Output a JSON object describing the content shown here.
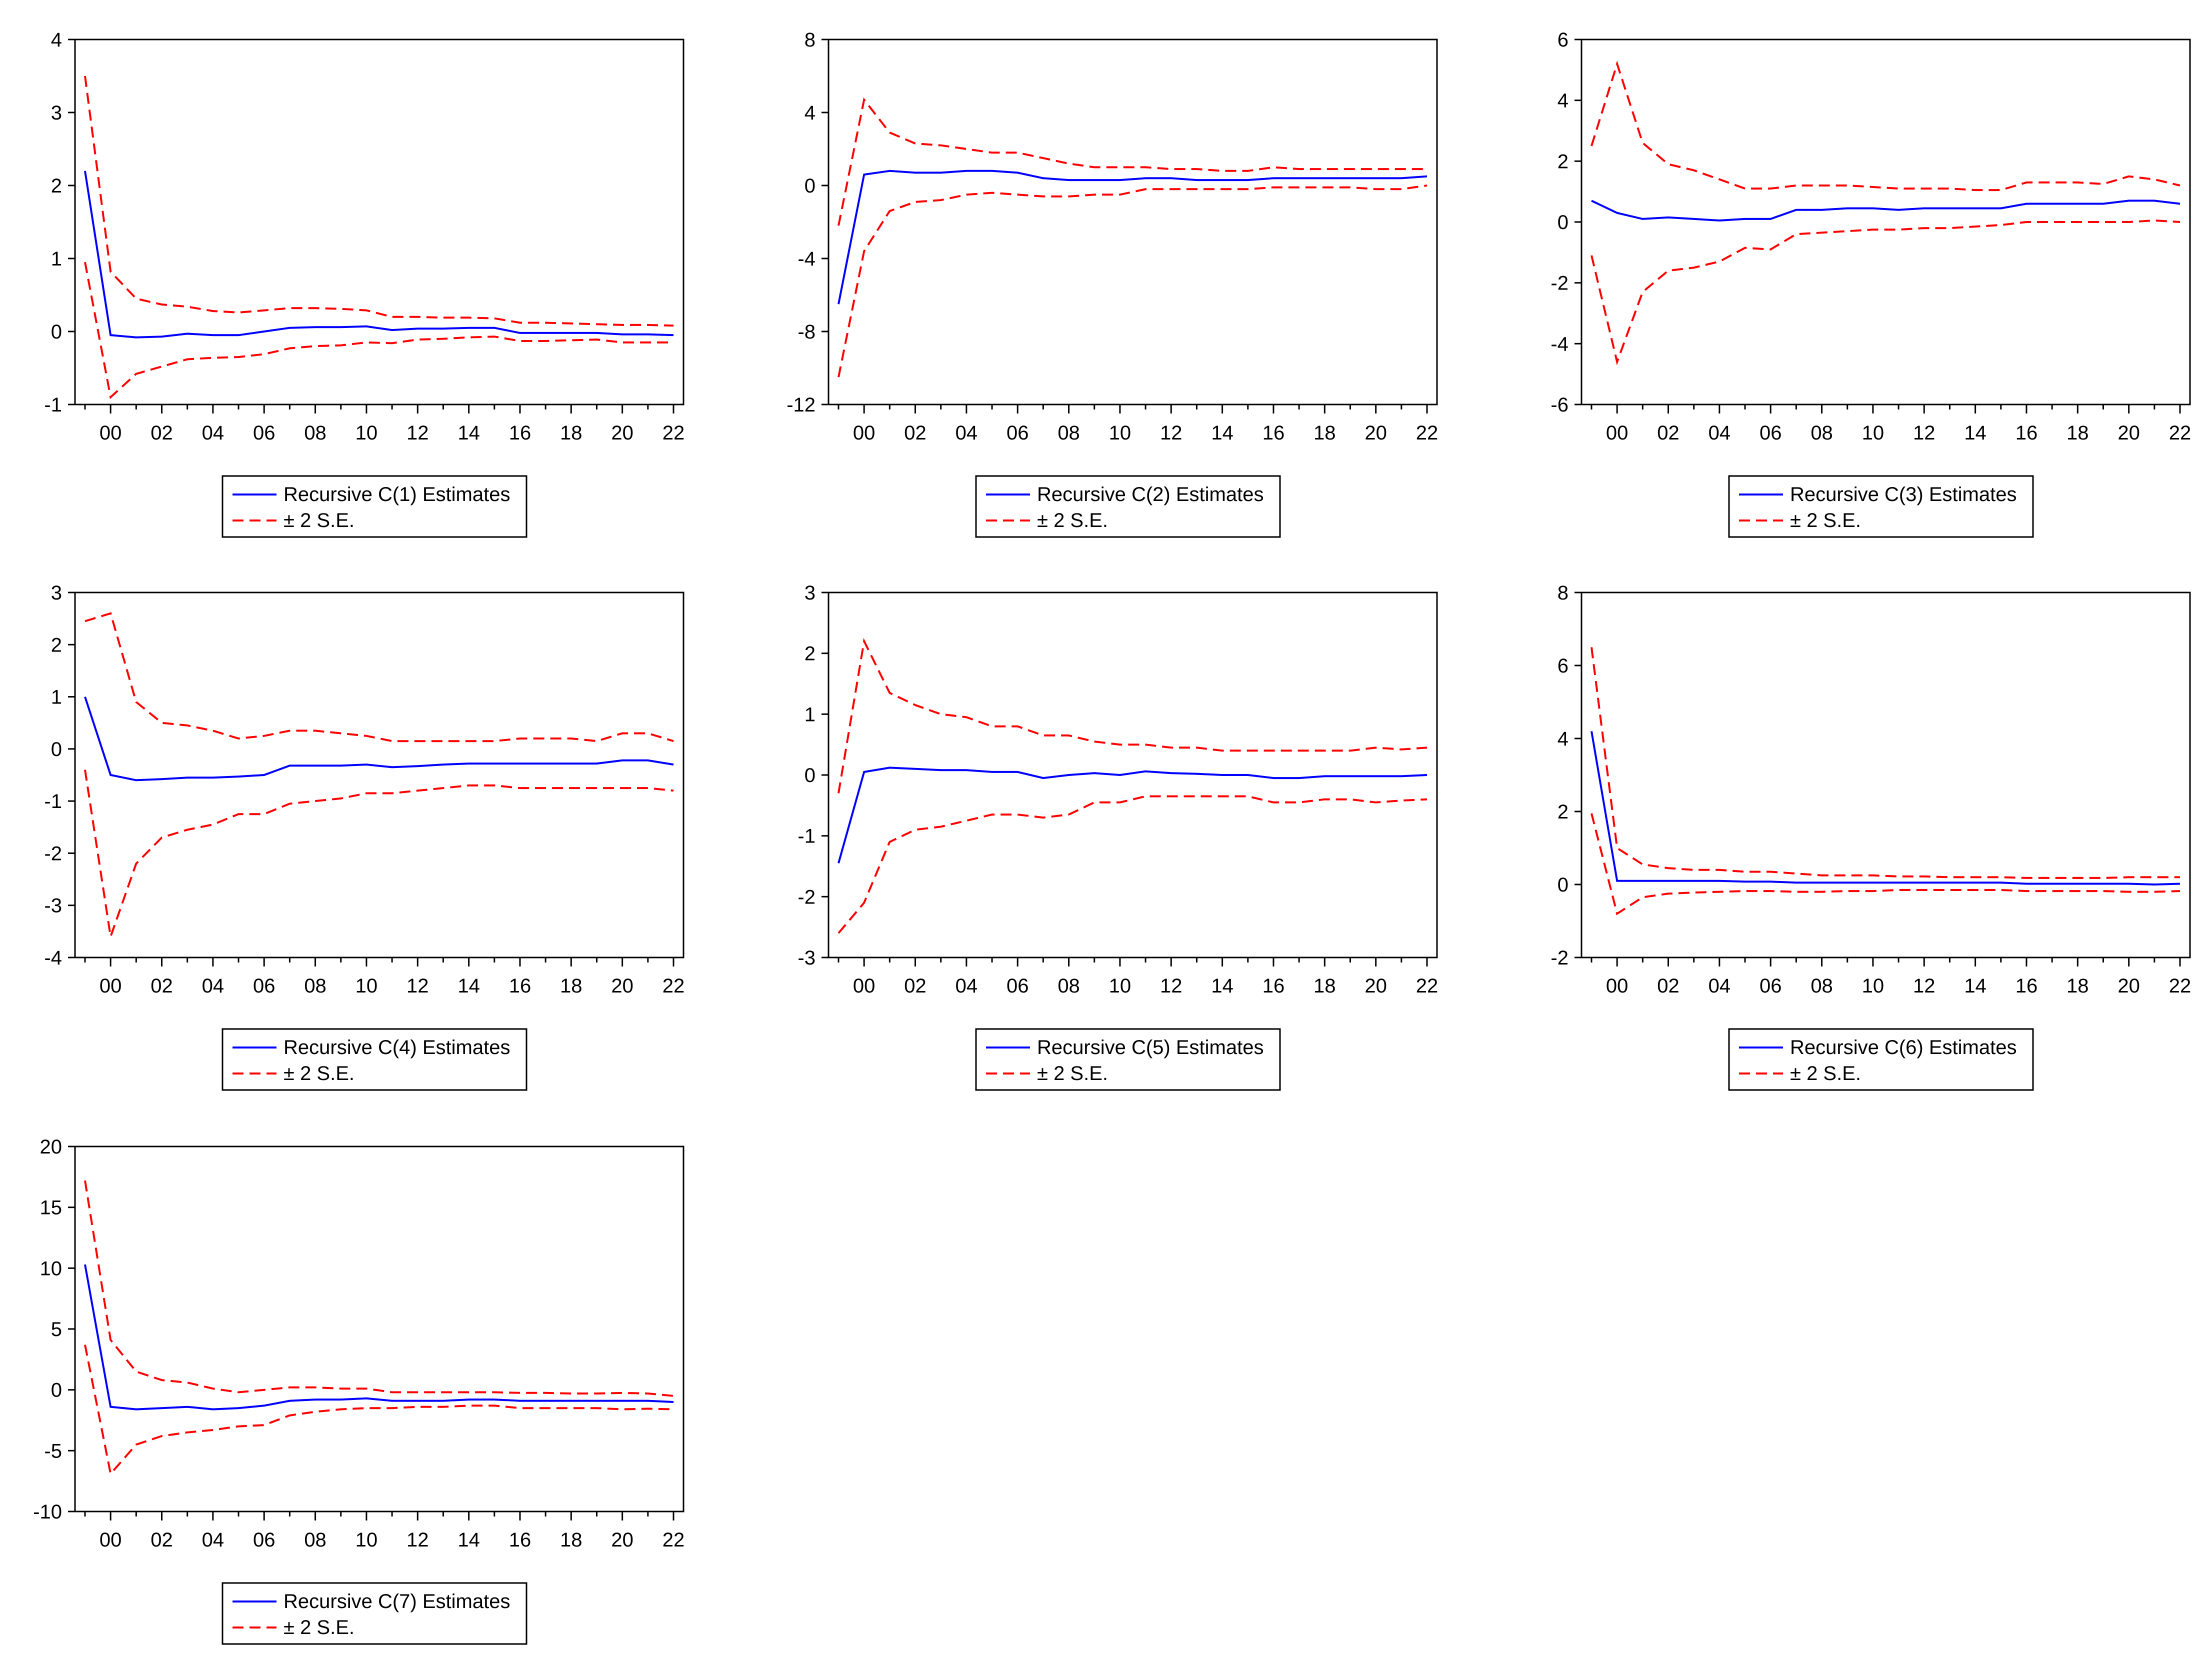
{
  "colors": {
    "estimate": "#0000ff",
    "band": "#ff0000",
    "axis": "#000000",
    "background": "#ffffff"
  },
  "chart_data": [
    {
      "type": "line",
      "x": [
        1999,
        2000,
        2001,
        2002,
        2003,
        2004,
        2005,
        2006,
        2007,
        2008,
        2009,
        2010,
        2011,
        2012,
        2013,
        2014,
        2015,
        2016,
        2017,
        2018,
        2019,
        2020,
        2021,
        2022
      ],
      "xtick_labels": [
        "00",
        "02",
        "04",
        "06",
        "08",
        "10",
        "12",
        "14",
        "16",
        "18",
        "20",
        "22"
      ],
      "ylim": [
        -1,
        4
      ],
      "yticks": [
        "-1",
        "0",
        "1",
        "2",
        "3",
        "4"
      ],
      "legend": {
        "estimate_label": "Recursive C(1) Estimates",
        "band_label": "± 2 S.E.",
        "position": "bottom"
      },
      "series": [
        {
          "name": "Recursive C(1) Estimates",
          "values": [
            2.2,
            -0.05,
            -0.08,
            -0.07,
            -0.03,
            -0.05,
            -0.05,
            0.0,
            0.05,
            0.06,
            0.06,
            0.07,
            0.02,
            0.04,
            0.04,
            0.05,
            0.05,
            -0.02,
            -0.02,
            -0.02,
            -0.02,
            -0.04,
            -0.04,
            -0.05
          ]
        },
        {
          "name": "+2 S.E.",
          "values": [
            3.5,
            0.82,
            0.45,
            0.37,
            0.34,
            0.28,
            0.26,
            0.29,
            0.32,
            0.32,
            0.31,
            0.29,
            0.2,
            0.2,
            0.19,
            0.19,
            0.18,
            0.12,
            0.12,
            0.11,
            0.1,
            0.09,
            0.09,
            0.08
          ]
        },
        {
          "name": "-2 S.E.",
          "values": [
            0.95,
            -0.9,
            -0.58,
            -0.48,
            -0.38,
            -0.36,
            -0.35,
            -0.31,
            -0.23,
            -0.2,
            -0.19,
            -0.15,
            -0.16,
            -0.11,
            -0.1,
            -0.08,
            -0.07,
            -0.13,
            -0.13,
            -0.12,
            -0.11,
            -0.15,
            -0.15,
            -0.15
          ]
        }
      ]
    },
    {
      "type": "line",
      "x": [
        1999,
        2000,
        2001,
        2002,
        2003,
        2004,
        2005,
        2006,
        2007,
        2008,
        2009,
        2010,
        2011,
        2012,
        2013,
        2014,
        2015,
        2016,
        2017,
        2018,
        2019,
        2020,
        2021,
        2022
      ],
      "xtick_labels": [
        "00",
        "02",
        "04",
        "06",
        "08",
        "10",
        "12",
        "14",
        "16",
        "18",
        "20",
        "22"
      ],
      "ylim": [
        -12,
        8
      ],
      "yticks": [
        "-12",
        "-8",
        "-4",
        "0",
        "4",
        "8"
      ],
      "legend": {
        "estimate_label": "Recursive C(2) Estimates",
        "band_label": "± 2 S.E.",
        "position": "bottom"
      },
      "series": [
        {
          "name": "Recursive C(2) Estimates",
          "values": [
            -6.5,
            0.6,
            0.8,
            0.7,
            0.7,
            0.8,
            0.8,
            0.7,
            0.4,
            0.3,
            0.3,
            0.3,
            0.4,
            0.4,
            0.3,
            0.3,
            0.3,
            0.4,
            0.4,
            0.4,
            0.4,
            0.4,
            0.4,
            0.5
          ]
        },
        {
          "name": "+2 S.E.",
          "values": [
            -2.2,
            4.7,
            2.9,
            2.3,
            2.2,
            2.0,
            1.8,
            1.8,
            1.5,
            1.2,
            1.0,
            1.0,
            1.0,
            0.9,
            0.9,
            0.8,
            0.8,
            1.0,
            0.9,
            0.9,
            0.9,
            0.9,
            0.9,
            0.9
          ]
        },
        {
          "name": "-2 S.E.",
          "values": [
            -10.5,
            -3.6,
            -1.4,
            -0.9,
            -0.8,
            -0.5,
            -0.4,
            -0.5,
            -0.6,
            -0.6,
            -0.5,
            -0.5,
            -0.2,
            -0.2,
            -0.2,
            -0.2,
            -0.2,
            -0.1,
            -0.1,
            -0.1,
            -0.1,
            -0.2,
            -0.2,
            0.0
          ]
        }
      ]
    },
    {
      "type": "line",
      "x": [
        1999,
        2000,
        2001,
        2002,
        2003,
        2004,
        2005,
        2006,
        2007,
        2008,
        2009,
        2010,
        2011,
        2012,
        2013,
        2014,
        2015,
        2016,
        2017,
        2018,
        2019,
        2020,
        2021,
        2022
      ],
      "xtick_labels": [
        "00",
        "02",
        "04",
        "06",
        "08",
        "10",
        "12",
        "14",
        "16",
        "18",
        "20",
        "22"
      ],
      "ylim": [
        -6,
        6
      ],
      "yticks": [
        "-6",
        "-4",
        "-2",
        "0",
        "2",
        "4",
        "6"
      ],
      "legend": {
        "estimate_label": "Recursive C(3) Estimates",
        "band_label": "± 2 S.E.",
        "position": "bottom"
      },
      "series": [
        {
          "name": "Recursive C(3) Estimates",
          "values": [
            0.7,
            0.3,
            0.1,
            0.15,
            0.1,
            0.05,
            0.1,
            0.1,
            0.4,
            0.4,
            0.45,
            0.45,
            0.4,
            0.45,
            0.45,
            0.45,
            0.45,
            0.6,
            0.6,
            0.6,
            0.6,
            0.7,
            0.7,
            0.6
          ]
        },
        {
          "name": "+2 S.E.",
          "values": [
            2.5,
            5.2,
            2.6,
            1.9,
            1.7,
            1.4,
            1.1,
            1.1,
            1.2,
            1.2,
            1.2,
            1.15,
            1.1,
            1.1,
            1.1,
            1.05,
            1.05,
            1.3,
            1.3,
            1.3,
            1.25,
            1.5,
            1.4,
            1.2
          ]
        },
        {
          "name": "-2 S.E.",
          "values": [
            -1.1,
            -4.6,
            -2.3,
            -1.6,
            -1.5,
            -1.3,
            -0.85,
            -0.9,
            -0.4,
            -0.35,
            -0.3,
            -0.25,
            -0.25,
            -0.2,
            -0.2,
            -0.15,
            -0.1,
            0.0,
            0.0,
            0.0,
            0.0,
            0.0,
            0.05,
            0.0
          ]
        }
      ]
    },
    {
      "type": "line",
      "x": [
        1999,
        2000,
        2001,
        2002,
        2003,
        2004,
        2005,
        2006,
        2007,
        2008,
        2009,
        2010,
        2011,
        2012,
        2013,
        2014,
        2015,
        2016,
        2017,
        2018,
        2019,
        2020,
        2021,
        2022
      ],
      "xtick_labels": [
        "00",
        "02",
        "04",
        "06",
        "08",
        "10",
        "12",
        "14",
        "16",
        "18",
        "20",
        "22"
      ],
      "ylim": [
        -4,
        3
      ],
      "yticks": [
        "-4",
        "-3",
        "-2",
        "-1",
        "0",
        "1",
        "2",
        "3"
      ],
      "legend": {
        "estimate_label": "Recursive C(4) Estimates",
        "band_label": "± 2 S.E.",
        "position": "bottom"
      },
      "series": [
        {
          "name": "Recursive C(4) Estimates",
          "values": [
            1.0,
            -0.5,
            -0.6,
            -0.58,
            -0.55,
            -0.55,
            -0.53,
            -0.5,
            -0.32,
            -0.32,
            -0.32,
            -0.3,
            -0.35,
            -0.33,
            -0.3,
            -0.28,
            -0.28,
            -0.28,
            -0.28,
            -0.28,
            -0.28,
            -0.22,
            -0.22,
            -0.3
          ]
        },
        {
          "name": "+2 S.E.",
          "values": [
            2.45,
            2.6,
            0.9,
            0.5,
            0.45,
            0.35,
            0.2,
            0.25,
            0.35,
            0.35,
            0.3,
            0.25,
            0.15,
            0.15,
            0.15,
            0.15,
            0.15,
            0.2,
            0.2,
            0.2,
            0.15,
            0.3,
            0.3,
            0.15
          ]
        },
        {
          "name": "-2 S.E.",
          "values": [
            -0.4,
            -3.6,
            -2.2,
            -1.7,
            -1.55,
            -1.45,
            -1.25,
            -1.25,
            -1.05,
            -1.0,
            -0.95,
            -0.85,
            -0.85,
            -0.8,
            -0.75,
            -0.7,
            -0.7,
            -0.75,
            -0.75,
            -0.75,
            -0.75,
            -0.75,
            -0.75,
            -0.8
          ]
        }
      ]
    },
    {
      "type": "line",
      "x": [
        1999,
        2000,
        2001,
        2002,
        2003,
        2004,
        2005,
        2006,
        2007,
        2008,
        2009,
        2010,
        2011,
        2012,
        2013,
        2014,
        2015,
        2016,
        2017,
        2018,
        2019,
        2020,
        2021,
        2022
      ],
      "xtick_labels": [
        "00",
        "02",
        "04",
        "06",
        "08",
        "10",
        "12",
        "14",
        "16",
        "18",
        "20",
        "22"
      ],
      "ylim": [
        -3,
        3
      ],
      "yticks": [
        "-3",
        "-2",
        "-1",
        "0",
        "1",
        "2",
        "3"
      ],
      "legend": {
        "estimate_label": "Recursive C(5) Estimates",
        "band_label": "± 2 S.E.",
        "position": "bottom"
      },
      "series": [
        {
          "name": "Recursive C(5) Estimates",
          "values": [
            -1.45,
            0.05,
            0.12,
            0.1,
            0.08,
            0.08,
            0.05,
            0.05,
            -0.05,
            0.0,
            0.03,
            0.0,
            0.06,
            0.03,
            0.02,
            0.0,
            0.0,
            -0.05,
            -0.05,
            -0.02,
            -0.02,
            -0.02,
            -0.02,
            0.0
          ]
        },
        {
          "name": "+2 S.E.",
          "values": [
            -0.3,
            2.2,
            1.35,
            1.15,
            1.0,
            0.95,
            0.8,
            0.8,
            0.65,
            0.65,
            0.55,
            0.5,
            0.5,
            0.45,
            0.45,
            0.4,
            0.4,
            0.4,
            0.4,
            0.4,
            0.4,
            0.45,
            0.42,
            0.45
          ]
        },
        {
          "name": "-2 S.E.",
          "values": [
            -2.6,
            -2.1,
            -1.1,
            -0.9,
            -0.85,
            -0.75,
            -0.65,
            -0.65,
            -0.7,
            -0.65,
            -0.45,
            -0.45,
            -0.35,
            -0.35,
            -0.35,
            -0.35,
            -0.35,
            -0.45,
            -0.45,
            -0.4,
            -0.4,
            -0.45,
            -0.42,
            -0.4
          ]
        }
      ]
    },
    {
      "type": "line",
      "x": [
        1999,
        2000,
        2001,
        2002,
        2003,
        2004,
        2005,
        2006,
        2007,
        2008,
        2009,
        2010,
        2011,
        2012,
        2013,
        2014,
        2015,
        2016,
        2017,
        2018,
        2019,
        2020,
        2021,
        2022
      ],
      "xtick_labels": [
        "00",
        "02",
        "04",
        "06",
        "08",
        "10",
        "12",
        "14",
        "16",
        "18",
        "20",
        "22"
      ],
      "ylim": [
        -2,
        8
      ],
      "yticks": [
        "-2",
        "0",
        "2",
        "4",
        "6",
        "8"
      ],
      "legend": {
        "estimate_label": "Recursive C(6) Estimates",
        "band_label": "± 2 S.E.",
        "position": "bottom"
      },
      "series": [
        {
          "name": "Recursive C(6) Estimates",
          "values": [
            4.2,
            0.1,
            0.1,
            0.1,
            0.1,
            0.1,
            0.08,
            0.08,
            0.05,
            0.05,
            0.05,
            0.05,
            0.05,
            0.05,
            0.05,
            0.05,
            0.05,
            0.02,
            0.02,
            0.02,
            0.02,
            0.02,
            0.0,
            0.02
          ]
        },
        {
          "name": "+2 S.E.",
          "values": [
            6.5,
            1.0,
            0.55,
            0.45,
            0.4,
            0.4,
            0.35,
            0.35,
            0.3,
            0.25,
            0.25,
            0.25,
            0.22,
            0.22,
            0.2,
            0.2,
            0.2,
            0.18,
            0.18,
            0.18,
            0.18,
            0.2,
            0.2,
            0.2
          ]
        },
        {
          "name": "-2 S.E.",
          "values": [
            1.95,
            -0.8,
            -0.35,
            -0.25,
            -0.22,
            -0.2,
            -0.18,
            -0.18,
            -0.2,
            -0.2,
            -0.18,
            -0.18,
            -0.15,
            -0.15,
            -0.15,
            -0.15,
            -0.15,
            -0.18,
            -0.18,
            -0.18,
            -0.18,
            -0.2,
            -0.2,
            -0.18
          ]
        }
      ]
    },
    {
      "type": "line",
      "x": [
        1999,
        2000,
        2001,
        2002,
        2003,
        2004,
        2005,
        2006,
        2007,
        2008,
        2009,
        2010,
        2011,
        2012,
        2013,
        2014,
        2015,
        2016,
        2017,
        2018,
        2019,
        2020,
        2021,
        2022
      ],
      "xtick_labels": [
        "00",
        "02",
        "04",
        "06",
        "08",
        "10",
        "12",
        "14",
        "16",
        "18",
        "20",
        "22"
      ],
      "ylim": [
        -10,
        20
      ],
      "yticks": [
        "-10",
        "-5",
        "0",
        "5",
        "10",
        "15",
        "20"
      ],
      "legend": {
        "estimate_label": "Recursive C(7) Estimates",
        "band_label": "± 2 S.E.",
        "position": "bottom"
      },
      "series": [
        {
          "name": "Recursive C(7) Estimates",
          "values": [
            10.3,
            -1.4,
            -1.6,
            -1.5,
            -1.4,
            -1.6,
            -1.5,
            -1.3,
            -0.9,
            -0.8,
            -0.8,
            -0.7,
            -0.9,
            -0.9,
            -0.9,
            -0.8,
            -0.8,
            -0.9,
            -0.9,
            -0.9,
            -0.9,
            -0.9,
            -0.9,
            -1.0
          ]
        },
        {
          "name": "+2 S.E.",
          "values": [
            17.2,
            4.1,
            1.5,
            0.8,
            0.6,
            0.1,
            -0.2,
            0.0,
            0.2,
            0.2,
            0.1,
            0.1,
            -0.2,
            -0.2,
            -0.2,
            -0.2,
            -0.2,
            -0.25,
            -0.25,
            -0.3,
            -0.3,
            -0.25,
            -0.3,
            -0.5
          ]
        },
        {
          "name": "-2 S.E.",
          "values": [
            3.7,
            -6.9,
            -4.5,
            -3.8,
            -3.5,
            -3.3,
            -3.0,
            -2.9,
            -2.1,
            -1.8,
            -1.6,
            -1.5,
            -1.5,
            -1.4,
            -1.4,
            -1.3,
            -1.3,
            -1.5,
            -1.5,
            -1.5,
            -1.5,
            -1.6,
            -1.55,
            -1.6
          ]
        }
      ]
    }
  ]
}
